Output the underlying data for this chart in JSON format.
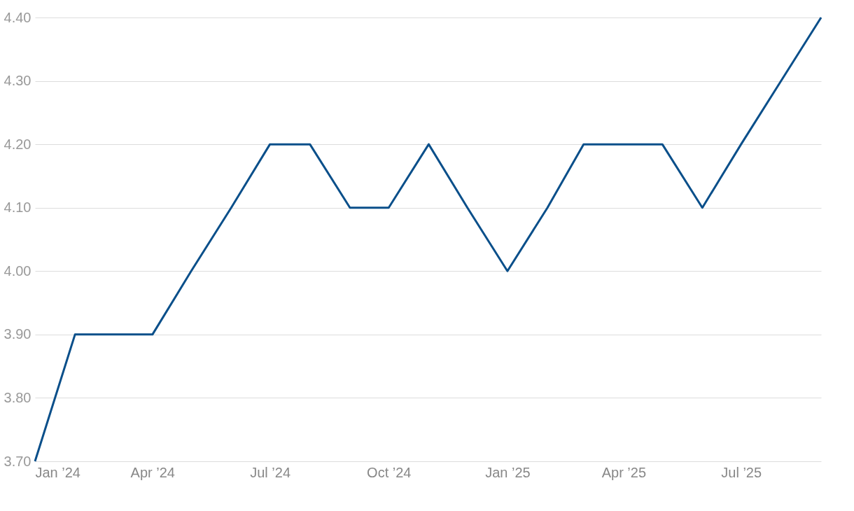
{
  "chart_data": {
    "type": "line",
    "x": [
      "2024-01",
      "2024-02",
      "2024-03",
      "2024-04",
      "2024-05",
      "2024-06",
      "2024-07",
      "2024-08",
      "2024-09",
      "2024-10",
      "2024-11",
      "2024-12",
      "2025-01",
      "2025-02",
      "2025-03",
      "2025-04",
      "2025-05",
      "2025-06",
      "2025-07",
      "2025-08",
      "2025-09"
    ],
    "series": [
      {
        "color": "#0a4f8a",
        "values": [
          3.7,
          3.9,
          3.9,
          3.9,
          4.0,
          4.1,
          4.2,
          4.2,
          4.1,
          4.1,
          4.2,
          4.1,
          4.0,
          4.1,
          4.2,
          4.2,
          4.2,
          4.1,
          4.2,
          4.3,
          4.4
        ]
      }
    ],
    "xlim": [
      "2024-01",
      "2025-09"
    ],
    "xticks": [
      {
        "value": "2024-01",
        "label": "Jan ’24"
      },
      {
        "value": "2024-04",
        "label": "Apr ’24"
      },
      {
        "value": "2024-07",
        "label": "Jul ’24"
      },
      {
        "value": "2024-10",
        "label": "Oct ’24"
      },
      {
        "value": "2025-01",
        "label": "Jan ’25"
      },
      {
        "value": "2025-04",
        "label": "Apr ’25"
      },
      {
        "value": "2025-07",
        "label": "Jul ’25"
      }
    ],
    "ylim": [
      3.7,
      4.4
    ],
    "yticks": [
      {
        "value": 3.7,
        "label": "3.70"
      },
      {
        "value": 3.8,
        "label": "3.80"
      },
      {
        "value": 3.9,
        "label": "3.90"
      },
      {
        "value": 4.0,
        "label": "4.00"
      },
      {
        "value": 4.1,
        "label": "4.10"
      },
      {
        "value": 4.2,
        "label": "4.20"
      },
      {
        "value": 4.3,
        "label": "4.30"
      },
      {
        "value": 4.4,
        "label": "4.40"
      }
    ],
    "grid": "y",
    "legend": false,
    "marker": "none",
    "line_style": "solid"
  }
}
